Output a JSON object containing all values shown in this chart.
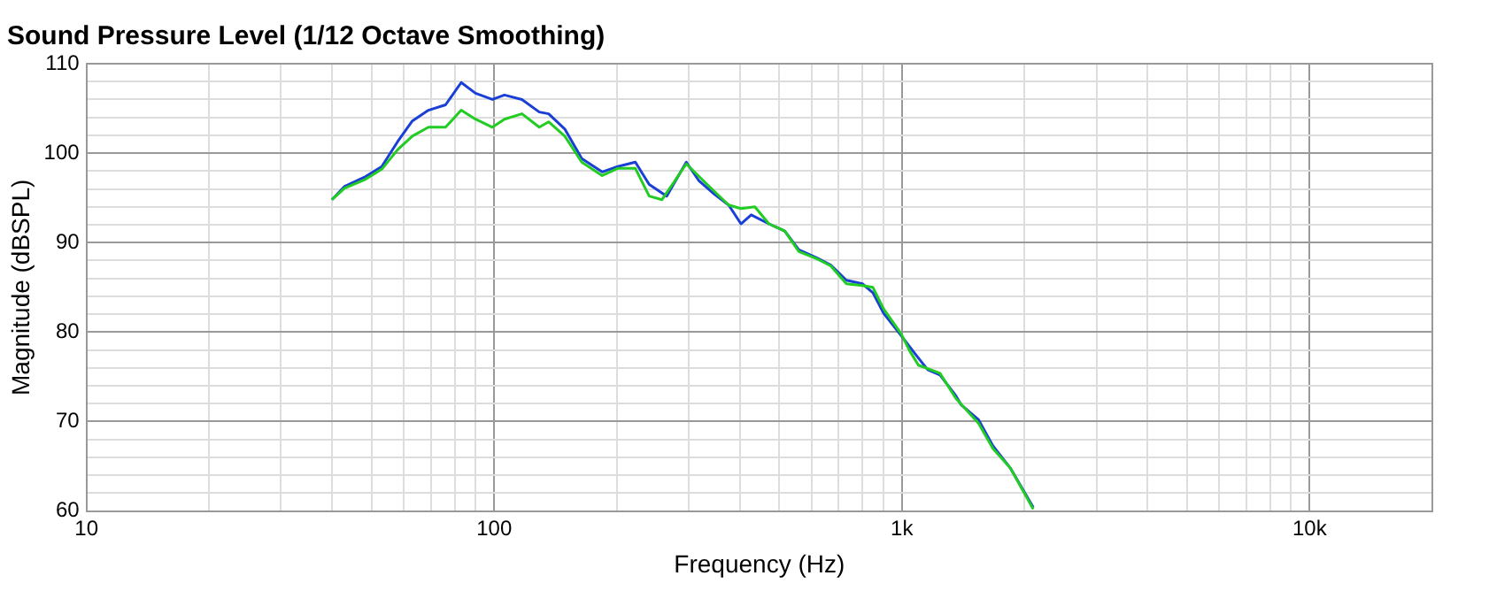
{
  "chart_data": {
    "type": "line",
    "title": "Sound Pressure Level (1/12 Octave Smoothing)",
    "xlabel": "Frequency (Hz)",
    "ylabel": "Magnitude (dBSPL)",
    "log": "x",
    "grid": true,
    "legend": false,
    "marker": "none",
    "line_style": "solid",
    "xlim": [
      10,
      20000
    ],
    "xticks": [
      10,
      {
        "value": 20,
        "label": null
      },
      {
        "value": 30,
        "label": null
      },
      {
        "value": 40,
        "label": null
      },
      {
        "value": 50,
        "label": null
      },
      {
        "value": 60,
        "label": null
      },
      {
        "value": 70,
        "label": null
      },
      {
        "value": 80,
        "label": null
      },
      {
        "value": 90,
        "label": null
      },
      100,
      {
        "value": 200,
        "label": null
      },
      {
        "value": 300,
        "label": null
      },
      {
        "value": 400,
        "label": null
      },
      {
        "value": 500,
        "label": null
      },
      {
        "value": 600,
        "label": null
      },
      {
        "value": 700,
        "label": null
      },
      {
        "value": 800,
        "label": null
      },
      {
        "value": 900,
        "label": null
      },
      {
        "value": 1000,
        "label": "1k"
      },
      {
        "value": 2000,
        "label": null
      },
      {
        "value": 3000,
        "label": null
      },
      {
        "value": 4000,
        "label": null
      },
      {
        "value": 5000,
        "label": null
      },
      {
        "value": 6000,
        "label": null
      },
      {
        "value": 7000,
        "label": null
      },
      {
        "value": 8000,
        "label": null
      },
      {
        "value": 9000,
        "label": null
      },
      {
        "value": 10000,
        "label": "10k"
      },
      {
        "value": 20000,
        "label": null
      }
    ],
    "ylim": [
      60,
      110
    ],
    "yticks": [
      60,
      {
        "value": 62,
        "label": null
      },
      {
        "value": 64,
        "label": null
      },
      {
        "value": 66,
        "label": null
      },
      {
        "value": 68,
        "label": null
      },
      70,
      {
        "value": 72,
        "label": null
      },
      {
        "value": 74,
        "label": null
      },
      {
        "value": 76,
        "label": null
      },
      {
        "value": 78,
        "label": null
      },
      80,
      {
        "value": 82,
        "label": null
      },
      {
        "value": 84,
        "label": null
      },
      {
        "value": 86,
        "label": null
      },
      {
        "value": 88,
        "label": null
      },
      90,
      {
        "value": 92,
        "label": null
      },
      {
        "value": 94,
        "label": null
      },
      {
        "value": 96,
        "label": null
      },
      {
        "value": 98,
        "label": null
      },
      100,
      {
        "value": 102,
        "label": null
      },
      {
        "value": 104,
        "label": null
      },
      {
        "value": 106,
        "label": null
      },
      {
        "value": 108,
        "label": null
      },
      110
    ],
    "series": [
      {
        "color": "#22cc22",
        "x": [
          40,
          43,
          48,
          53,
          58,
          63,
          69,
          76,
          83,
          90,
          99,
          106,
          117,
          129,
          136,
          149,
          164,
          184,
          201,
          222,
          240,
          258,
          296,
          333,
          376,
          403,
          436,
          472,
          516,
          559,
          618,
          669,
          731,
          800,
          849,
          902,
          996,
          1045,
          1098,
          1240,
          1356,
          1542,
          1671,
          1845,
          2100
        ],
        "values": [
          94.8,
          96.1,
          97,
          98.2,
          100.4,
          101.9,
          102.9,
          102.9,
          104.8,
          103.8,
          102.9,
          103.8,
          104.4,
          102.9,
          103.5,
          101.9,
          99,
          97.5,
          98.3,
          98.3,
          95.2,
          94.8,
          98.8,
          96.5,
          94.2,
          93.8,
          94,
          92.1,
          91.3,
          89,
          88.2,
          87.4,
          85.4,
          85.2,
          85,
          82.6,
          79.8,
          77.9,
          76.3,
          75.4,
          72.6,
          69.8,
          67,
          64.8,
          60.2
        ]
      },
      {
        "color": "#1a3fd6",
        "x": [
          40,
          43,
          48,
          53,
          58,
          63,
          69,
          76,
          83,
          90,
          99,
          106,
          117,
          129,
          136,
          149,
          164,
          184,
          201,
          222,
          240,
          265,
          296,
          318,
          347,
          376,
          403,
          427,
          472,
          516,
          559,
          618,
          669,
          731,
          800,
          849,
          902,
          996,
          1089,
          1157,
          1240,
          1356,
          1396,
          1542,
          1671,
          1845,
          2100
        ],
        "values": [
          94.8,
          96.3,
          97.3,
          98.5,
          101.3,
          103.6,
          104.8,
          105.4,
          107.9,
          106.7,
          106,
          106.5,
          106,
          104.6,
          104.4,
          102.7,
          99.4,
          97.9,
          98.5,
          99,
          96.5,
          95.2,
          99,
          96.9,
          95.4,
          94.2,
          92.1,
          93.1,
          92.1,
          91.3,
          89.2,
          88.3,
          87.5,
          85.8,
          85.4,
          84.4,
          82.1,
          79.6,
          77.3,
          75.8,
          75.2,
          72.9,
          71.9,
          70.2,
          67.3,
          64.8,
          60.4
        ]
      }
    ]
  }
}
